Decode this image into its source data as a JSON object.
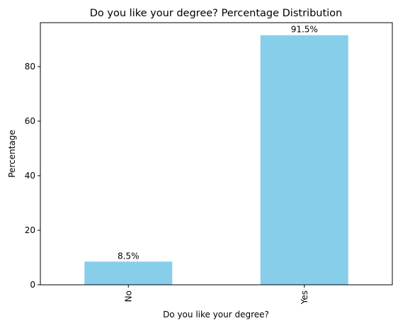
{
  "chart_data": {
    "type": "bar",
    "title": "Do you like your degree? Percentage Distribution",
    "xlabel": "Do you like your degree?",
    "ylabel": "Percentage",
    "categories": [
      "No",
      "Yes"
    ],
    "values": [
      8.5,
      91.5
    ],
    "data_labels": [
      "8.5%",
      "91.5%"
    ],
    "yticks": [
      0,
      20,
      40,
      60,
      80
    ],
    "ylim": [
      0,
      96.1
    ],
    "bar_color": "#87ceeb",
    "grid": false,
    "legend": "none"
  }
}
